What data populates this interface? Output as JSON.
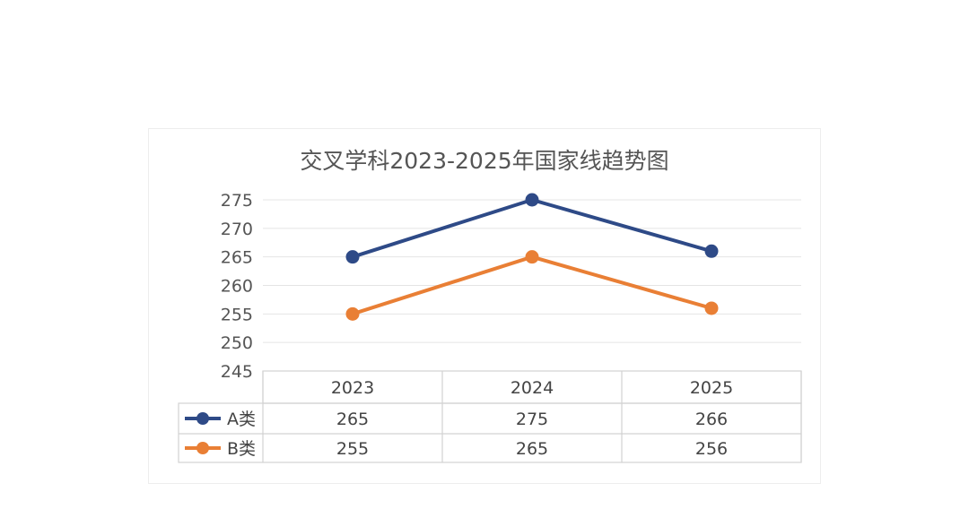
{
  "chart_data": {
    "type": "line",
    "title": "交叉学科2023-2025年国家线趋势图",
    "categories": [
      "2023",
      "2024",
      "2025"
    ],
    "series": [
      {
        "name": "A类",
        "values": [
          265,
          275,
          266
        ],
        "color": "#2e4a87"
      },
      {
        "name": "B类",
        "values": [
          255,
          265,
          256
        ],
        "color": "#e97f35"
      }
    ],
    "ylim": [
      245,
      275
    ],
    "yticks": [
      "245",
      "250",
      "255",
      "260",
      "265",
      "270",
      "275"
    ],
    "grid": true,
    "legend": "data-table",
    "data_table": true
  }
}
